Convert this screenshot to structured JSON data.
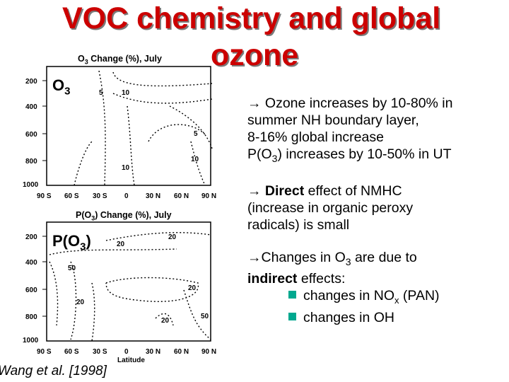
{
  "slide": {
    "title_line1": "VOC chemistry and global",
    "title_line2": "ozone",
    "citation": "Wang et al. [1998]"
  },
  "top_panel": {
    "plot_title_main": "O",
    "plot_title_sub": "3",
    "plot_title_rest": " Change (%), July",
    "label_main": "O",
    "label_sub": "3",
    "y_ticks": [
      "200",
      "400",
      "600",
      "800",
      "1000"
    ],
    "x_ticks": [
      "90 S",
      "60 S",
      "30 S",
      "0",
      "30 N",
      "60 N",
      "90 N"
    ],
    "contour_labels": [
      "5",
      "10",
      "5",
      "10",
      "10"
    ]
  },
  "bottom_panel": {
    "plot_title_pre": "P(O",
    "plot_title_sub": "3",
    "plot_title_rest": ") Change (%), July",
    "label_pre": "P(O",
    "label_sub": "3",
    "label_post": ")",
    "y_ticks": [
      "200",
      "400",
      "600",
      "800",
      "1000"
    ],
    "x_ticks": [
      "90 S",
      "60 S",
      "30 S",
      "0",
      "30 N",
      "60 N",
      "90 N"
    ],
    "x_axis_label": "Latitude",
    "contour_labels": [
      "20",
      "20",
      "50",
      "20",
      "20",
      "20",
      "50"
    ]
  },
  "bullets": {
    "b1_l1": " Ozone increases by 10-80% in",
    "b1_l2": "summer NH boundary layer,",
    "b1_l3": "8-16% global increase",
    "b1_l4_pre": "P(O",
    "b1_l4_sub": "3",
    "b1_l4_post": ") increases by 10-50% in UT",
    "b2_bold": "Direct",
    "b2_l1_rest": " effect of NMHC",
    "b2_l2": "(increase in organic peroxy",
    "b2_l3": "radicals) is small",
    "b3_l1_pre": "Changes in O",
    "b3_l1_sub": "3",
    "b3_l1_post": " are due to",
    "b3_bold": "indirect",
    "b3_l2_rest": " effects:",
    "sub1_pre": "changes in NO",
    "sub1_sub": "x",
    "sub1_post": " (PAN)",
    "sub2": "changes in OH"
  },
  "colors": {
    "title": "#cc0000",
    "bullet_square": "#00a88f"
  }
}
